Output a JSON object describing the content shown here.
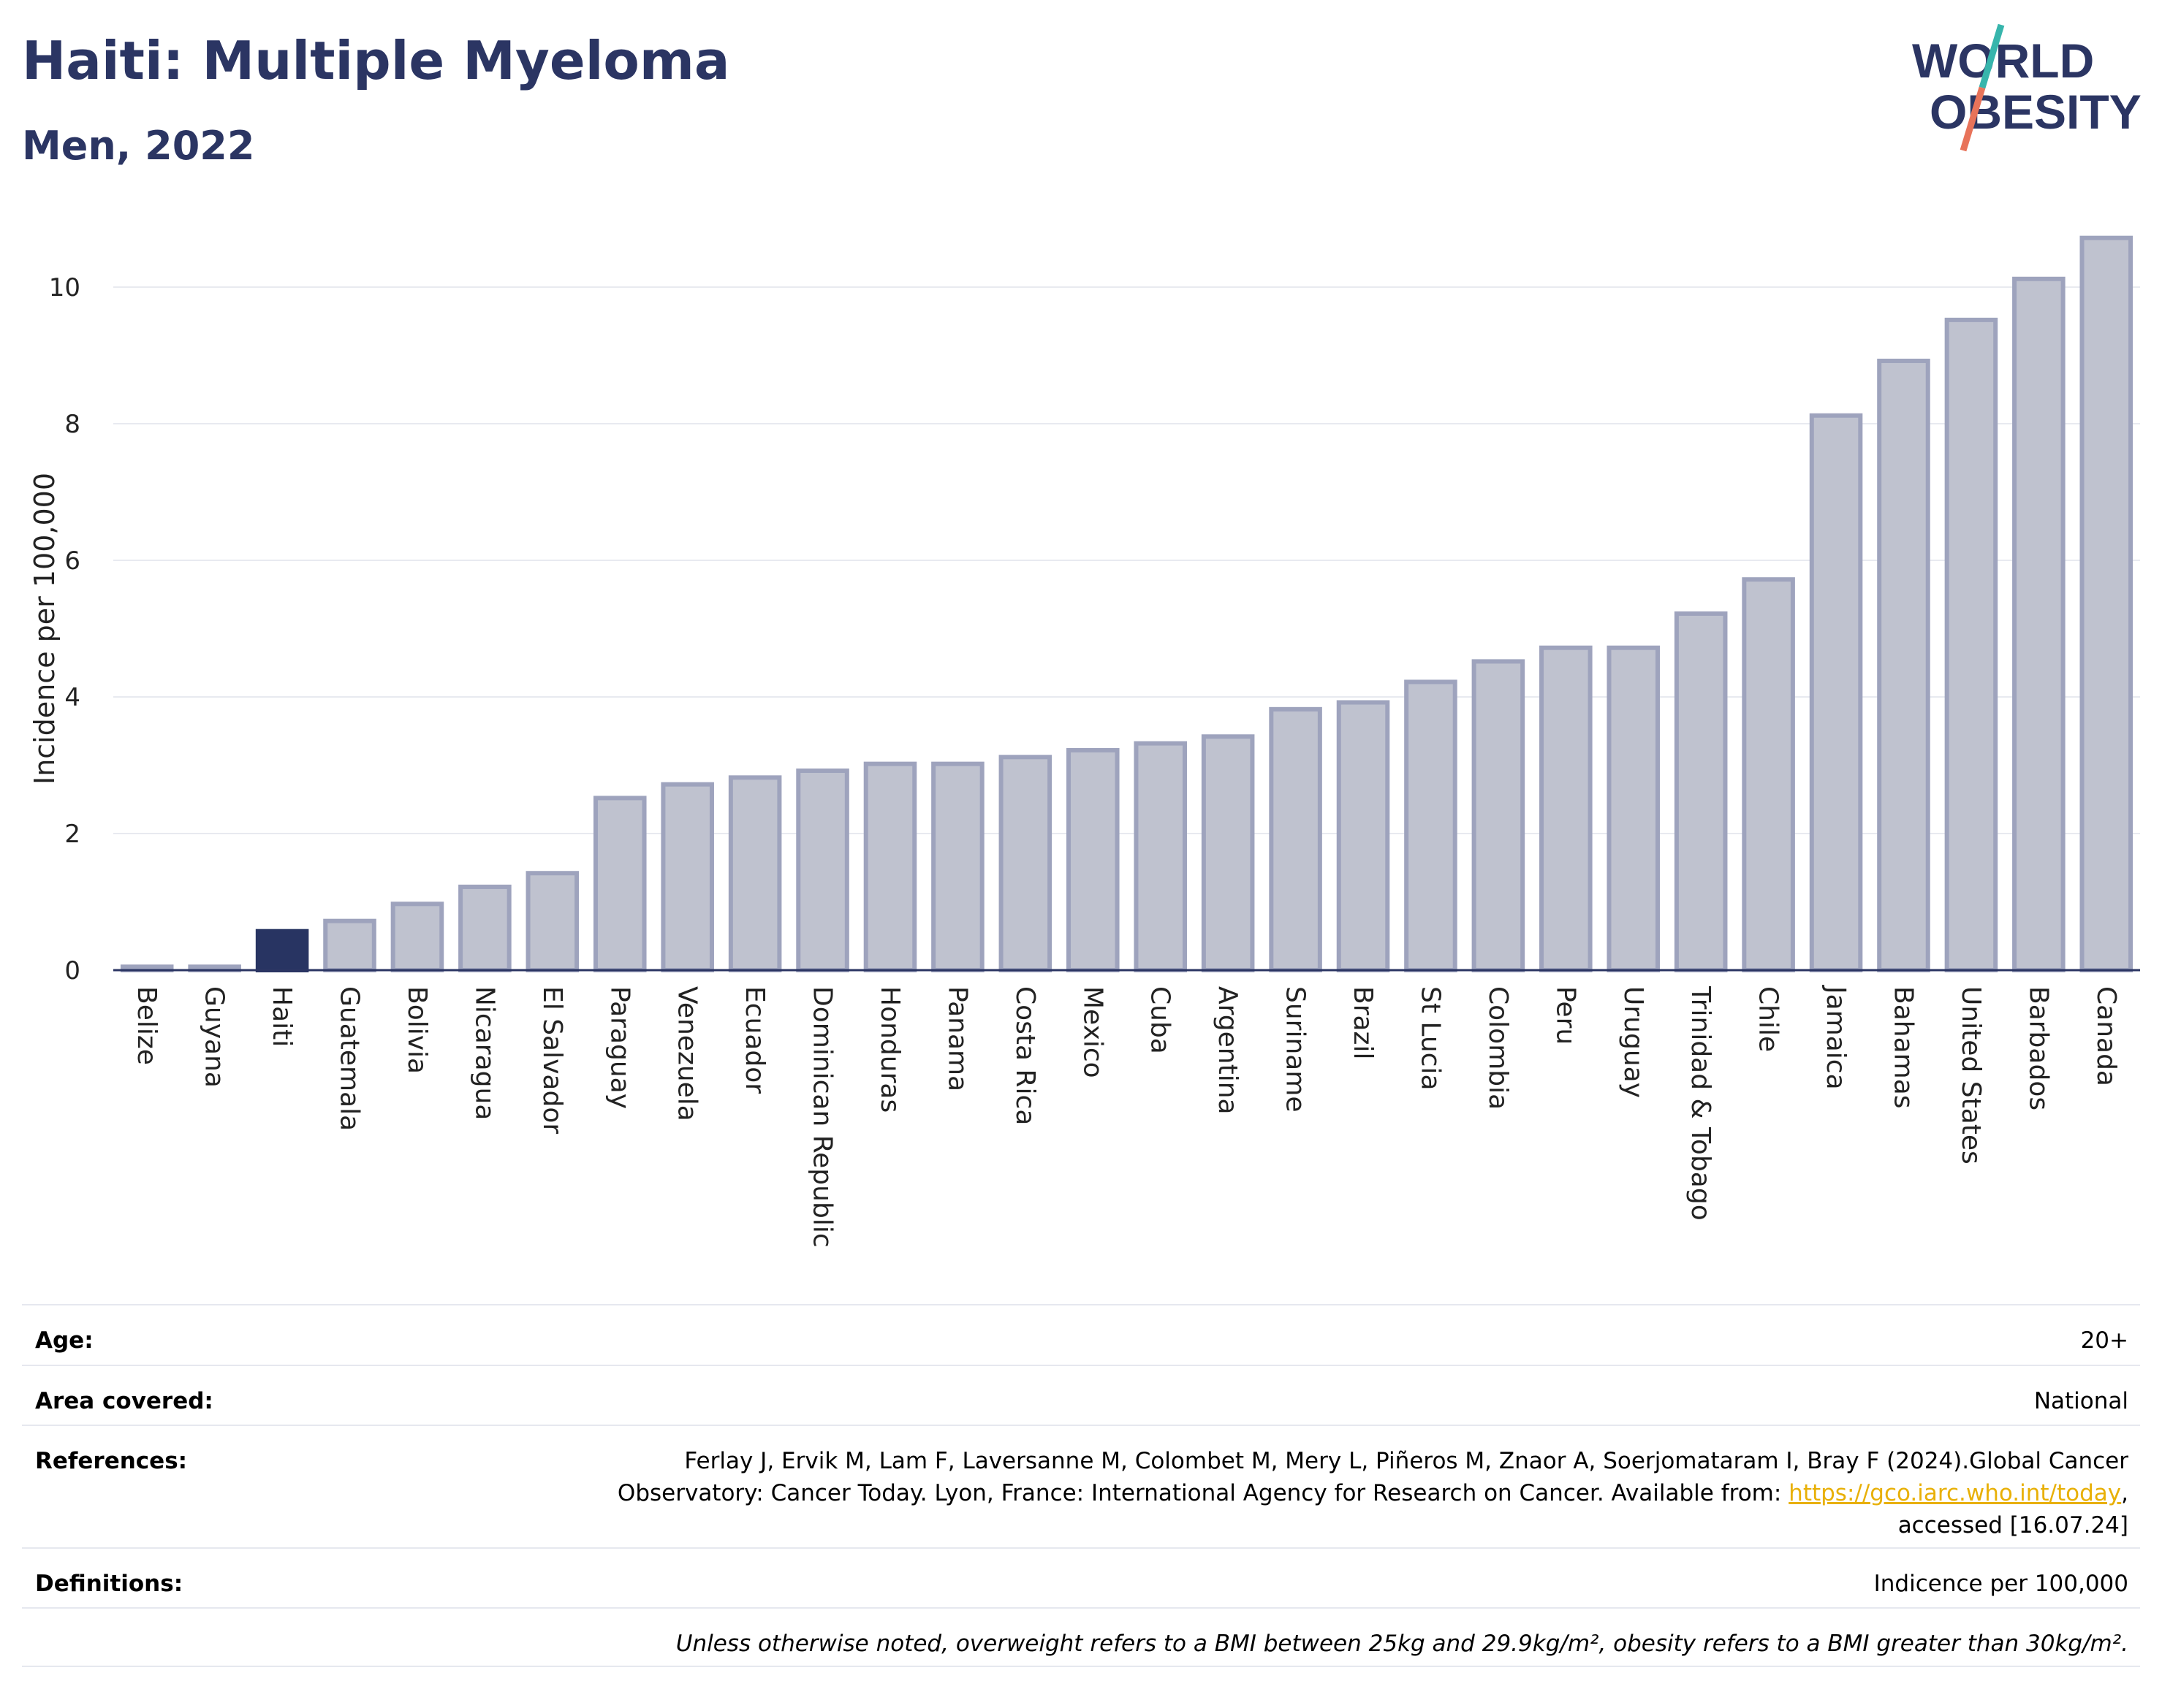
{
  "header": {
    "title": "Haiti: Multiple Myeloma",
    "subtitle": "Men, 2022",
    "logo_line1": "WORLD",
    "logo_line2": "OBESITY"
  },
  "colors": {
    "title": "#2b3563",
    "highlight_bar": "#283462",
    "other_bar_fill": "#bfc2cf",
    "other_bar_stroke": "#9ea3bd",
    "logo_text": "#2b3563",
    "logo_slash_top": "#37b5ac",
    "logo_slash_bottom": "#e8735a",
    "link": "#e8b007"
  },
  "chart_data": {
    "type": "bar",
    "title": "Haiti: Multiple Myeloma",
    "subtitle": "Men, 2022",
    "ylabel": "Incidence per 100,000",
    "xlabel": "",
    "ylim": [
      0,
      11
    ],
    "yticks": [
      0,
      2,
      4,
      6,
      8,
      10
    ],
    "grid": true,
    "highlight": "Haiti",
    "categories": [
      "Belize",
      "Guyana",
      "Haiti",
      "Guatemala",
      "Bolivia",
      "Nicaragua",
      "El Salvador",
      "Paraguay",
      "Venezuela",
      "Ecuador",
      "Dominican Republic",
      "Honduras",
      "Panama",
      "Costa Rica",
      "Mexico",
      "Cuba",
      "Argentina",
      "Suriname",
      "Brazil",
      "St Lucia",
      "Colombia",
      "Peru",
      "Uruguay",
      "Trinidad & Tobago",
      "Chile",
      "Jamaica",
      "Bahamas",
      "United States",
      "Barbados",
      "Canada"
    ],
    "values": [
      0.05,
      0.05,
      0.57,
      0.72,
      0.97,
      1.22,
      1.42,
      2.52,
      2.72,
      2.82,
      2.92,
      3.02,
      3.02,
      3.12,
      3.22,
      3.32,
      3.42,
      3.82,
      3.92,
      4.22,
      4.52,
      4.72,
      4.72,
      5.22,
      5.72,
      8.12,
      8.92,
      9.52,
      10.12,
      10.72
    ]
  },
  "info": {
    "age_label": "Age:",
    "age_value": "20+",
    "area_label": "Area covered:",
    "area_value": "National",
    "references_label": "References:",
    "references_text": "Ferlay J, Ervik M, Lam F, Laversanne M, Colombet M, Mery L, Piñeros M, Znaor A, Soerjomataram I, Bray F (2024).Global Cancer Observatory: Cancer Today. Lyon, France: International Agency for Research on Cancer. Available from: ",
    "references_link": "https://gco.iarc.who.int/today",
    "references_suffix": ", accessed [16.07.24]",
    "definitions_label": "Definitions:",
    "definitions_value": "Indicence per 100,000",
    "note": "Unless otherwise noted, overweight refers to a BMI between 25kg and 29.9kg/m², obesity refers to a BMI greater than 30kg/m²."
  }
}
